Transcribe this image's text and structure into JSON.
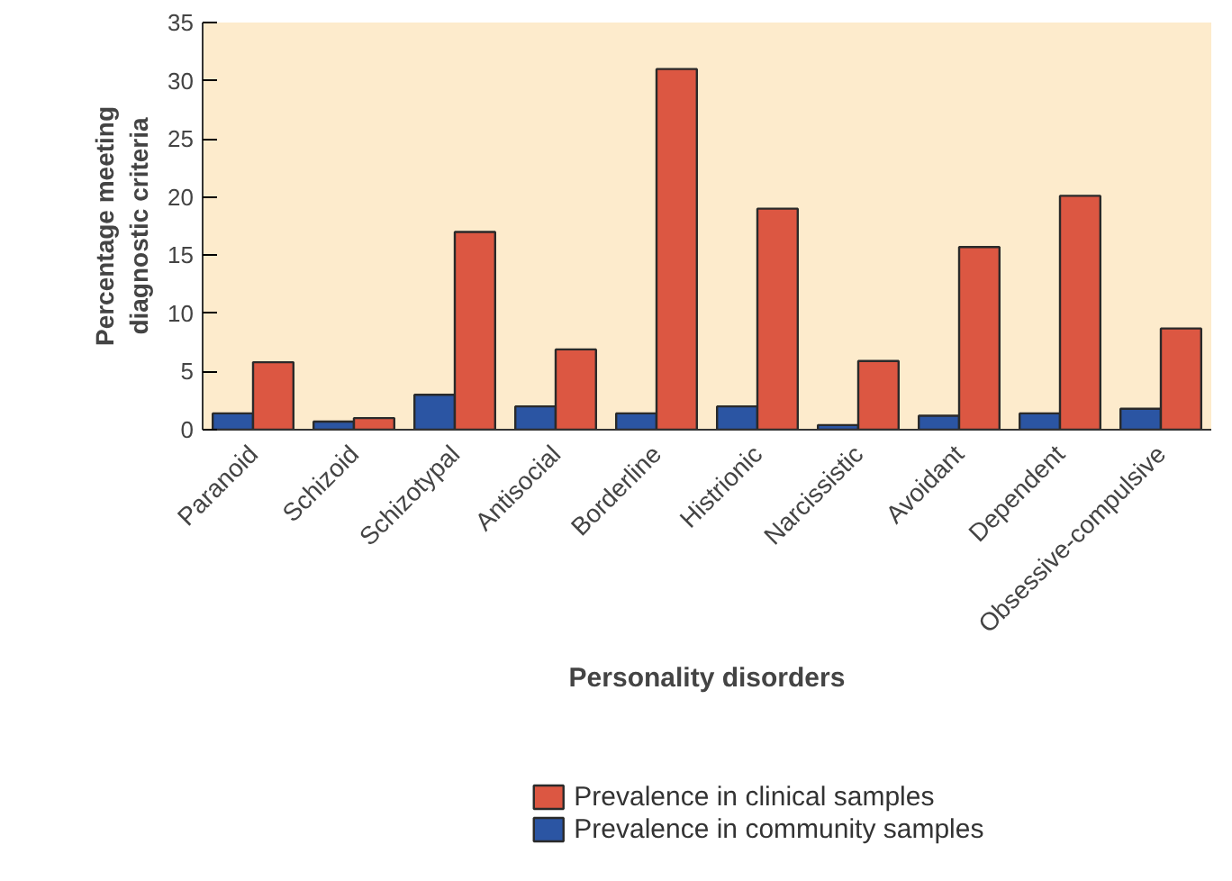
{
  "chart_data": {
    "type": "bar",
    "xlabel": "Personality disorders",
    "ylabel": "Percentage meeting\ndiagnostic criteria",
    "categories": [
      "Paranoid",
      "Schizoid",
      "Schizotypal",
      "Antisocial",
      "Borderline",
      "Histrionic",
      "Narcissistic",
      "Avoidant",
      "Dependent",
      "Obsessive-compulsive"
    ],
    "series": [
      {
        "name": "Prevalence in community samples",
        "color": "#2b55a3",
        "values": [
          1.4,
          0.7,
          3.0,
          2.0,
          1.4,
          2.0,
          0.4,
          1.2,
          1.4,
          1.8
        ]
      },
      {
        "name": "Prevalence in clinical samples",
        "color": "#dc5742",
        "values": [
          5.8,
          1.0,
          17.0,
          6.9,
          31.0,
          19.0,
          5.9,
          15.7,
          20.1,
          8.7
        ]
      }
    ],
    "ylim": [
      0,
      35
    ],
    "yticks": [
      0,
      5,
      10,
      15,
      20,
      25,
      30,
      35
    ],
    "grid": false,
    "legend": "bottom"
  }
}
